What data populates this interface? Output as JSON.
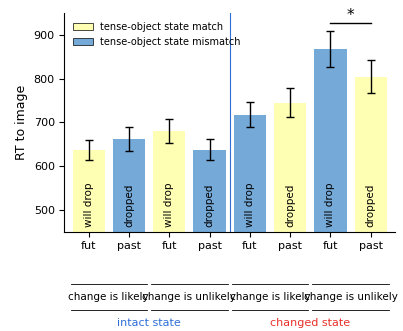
{
  "chart_data": {
    "type": "bar",
    "y_label": "RT to image",
    "categories": [
      "fut",
      "past",
      "fut",
      "past",
      "fut",
      "past",
      "fut",
      "past"
    ],
    "series": [
      {
        "name": "tense-object state match",
        "color": "#ffffb3",
        "values": [
          637,
          null,
          681,
          null,
          null,
          745,
          null,
          805
        ],
        "errors": [
          22,
          null,
          27,
          null,
          null,
          33,
          null,
          38
        ]
      },
      {
        "name": "tense-object state mismatch",
        "color": "#74a9d8",
        "values": [
          null,
          662,
          null,
          638,
          718,
          null,
          868,
          null
        ],
        "errors": [
          null,
          28,
          null,
          25,
          28,
          null,
          42,
          null
        ]
      }
    ],
    "bar_texts": [
      "will drop",
      "dropped",
      "will drop",
      "dropped",
      "will drop",
      "dropped",
      "will drop",
      "dropped"
    ],
    "groups": [
      {
        "label": "change is likely",
        "first": 0,
        "last": 1
      },
      {
        "label": "change is unlikely",
        "first": 2,
        "last": 3
      },
      {
        "label": "change is likely",
        "first": 4,
        "last": 5
      },
      {
        "label": "change is unlikely",
        "first": 6,
        "last": 7
      }
    ],
    "state_groups": [
      {
        "label": "intact state",
        "first": 0,
        "last": 3,
        "color": "#2f6fd6"
      },
      {
        "label": "changed state",
        "first": 4,
        "last": 7,
        "color": "#e8312a"
      }
    ],
    "annotations": [
      {
        "text": "*",
        "first": 6,
        "last": 7,
        "y": 928
      }
    ],
    "ylim": [
      450,
      950
    ],
    "yticks": [
      500,
      600,
      700,
      800,
      900
    ],
    "legend": "upper left"
  }
}
